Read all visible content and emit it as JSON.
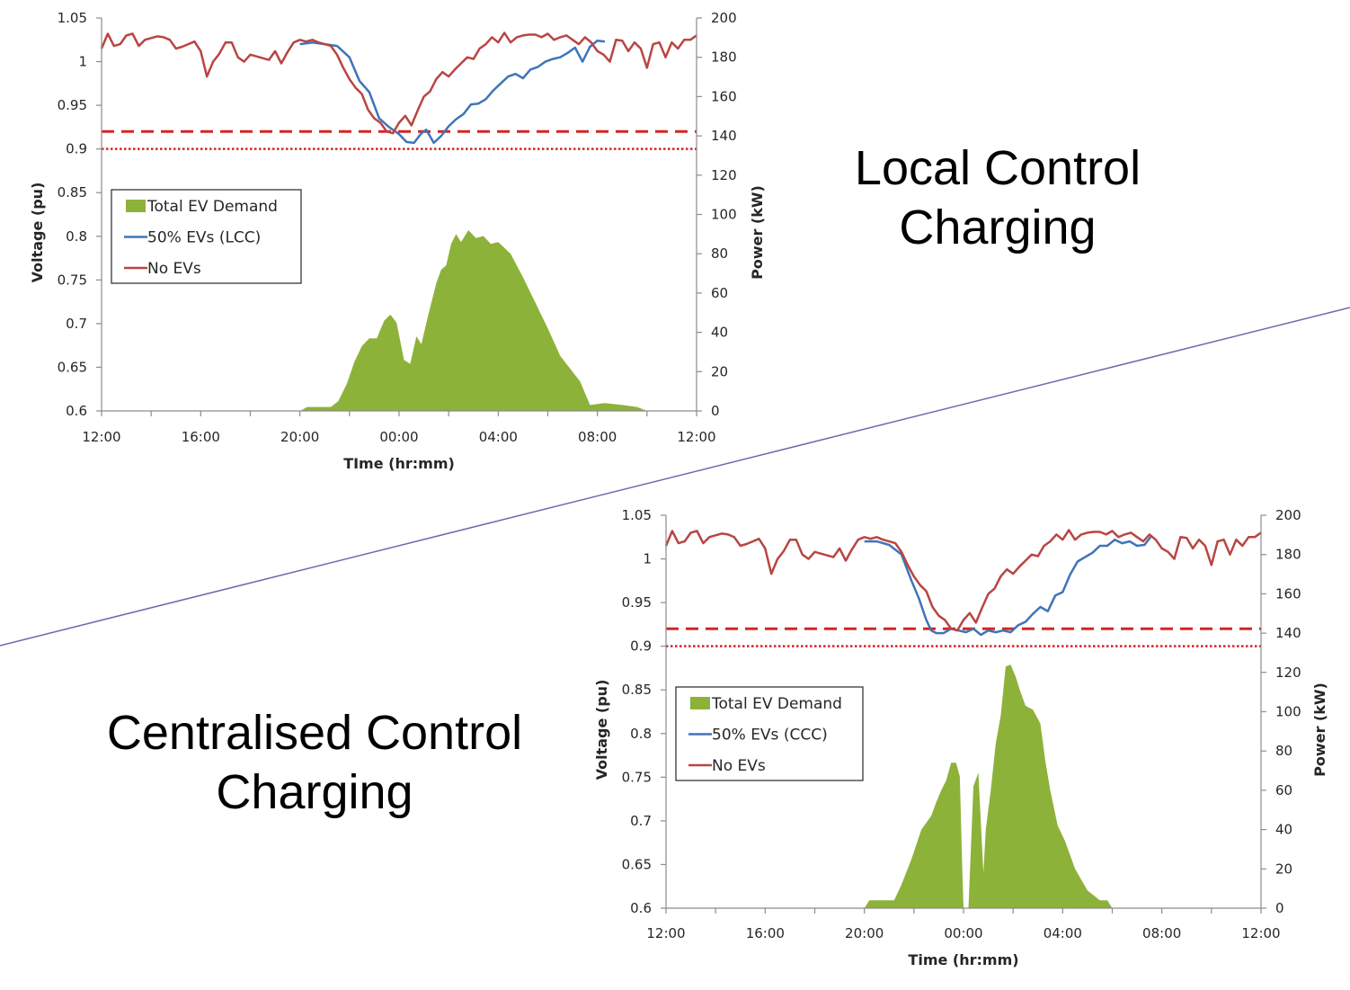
{
  "labels": {
    "top": [
      "Local Control",
      "Charging"
    ],
    "bottom": [
      "Centralised Control",
      "Charging"
    ]
  },
  "colors": {
    "demand": "#8db23a",
    "ev": "#3f74b9",
    "noev": "#b94542",
    "limit": "#d42525",
    "divider": "#6f6aa8"
  },
  "chart_data": [
    {
      "type": "area+line",
      "title": "Local Control Charging",
      "xlabel": "TIme (hr:mm)",
      "ylabel": "Voltage (pu)",
      "y2label": "Power (kW)",
      "x_ticks": [
        "12:00",
        "16:00",
        "20:00",
        "00:00",
        "04:00",
        "08:00",
        "12:00"
      ],
      "xlim_hours": [
        0,
        24
      ],
      "ylim": [
        0.6,
        1.05
      ],
      "y_ticks": [
        "0.6",
        "0.65",
        "0.7",
        "0.75",
        "0.8",
        "0.85",
        "0.9",
        "0.95",
        "1",
        "1.05"
      ],
      "y2lim": [
        0,
        200
      ],
      "y2_ticks": [
        "0",
        "20",
        "40",
        "60",
        "80",
        "100",
        "120",
        "140",
        "160",
        "180",
        "200"
      ],
      "limits": [
        {
          "value": 0.92,
          "style": "dashed"
        },
        {
          "value": 0.9,
          "style": "dotted"
        }
      ],
      "legend": [
        "Total EV Demand",
        "50% EVs (LCC)",
        "No EVs"
      ],
      "series": [
        {
          "name": "Total EV Demand",
          "axis": "y2",
          "kind": "area",
          "x": [
            0,
            8.0,
            8.3,
            9.25,
            9.55,
            9.9,
            10.2,
            10.5,
            10.8,
            11.1,
            11.4,
            11.65,
            11.9,
            12.2,
            12.45,
            12.7,
            12.9,
            13.2,
            13.5,
            13.7,
            13.9,
            14.1,
            14.3,
            14.5,
            14.8,
            15.1,
            15.4,
            15.7,
            16.0,
            16.5,
            17.0,
            17.5,
            18.0,
            18.5,
            19.3,
            19.7,
            20.3,
            21.0,
            21.6,
            22.0
          ],
          "y": [
            0,
            0,
            2,
            2,
            5,
            14,
            25,
            33,
            37,
            37,
            46,
            49,
            45,
            26,
            24,
            38,
            34,
            50,
            65,
            72,
            74,
            85,
            90,
            86,
            92,
            88,
            89,
            85,
            86,
            80,
            68,
            55,
            42,
            28,
            15,
            3,
            4,
            3,
            2,
            0
          ]
        },
        {
          "name": "50% EVs (LCC)",
          "axis": "y",
          "kind": "line",
          "x": [
            8.0,
            8.5,
            9.0,
            9.5,
            10.0,
            10.4,
            10.8,
            11.2,
            11.6,
            12.0,
            12.3,
            12.6,
            12.9,
            13.1,
            13.4,
            13.7,
            14.0,
            14.3,
            14.6,
            14.9,
            15.2,
            15.5,
            15.8,
            16.1,
            16.4,
            16.7,
            17.0,
            17.3,
            17.6,
            17.9,
            18.2,
            18.5,
            18.8,
            19.1,
            19.4,
            19.7,
            20.0,
            20.3
          ],
          "y": [
            1.02,
            1.022,
            1.02,
            1.018,
            1.005,
            0.978,
            0.965,
            0.935,
            0.925,
            0.917,
            0.908,
            0.907,
            0.918,
            0.922,
            0.907,
            0.915,
            0.926,
            0.934,
            0.94,
            0.951,
            0.952,
            0.957,
            0.967,
            0.975,
            0.983,
            0.986,
            0.981,
            0.991,
            0.994,
            1.0,
            1.003,
            1.005,
            1.01,
            1.016,
            1.0,
            1.017,
            1.024,
            1.023
          ]
        },
        {
          "name": "No EVs",
          "axis": "y",
          "kind": "line",
          "x": [
            0,
            0.25,
            0.5,
            0.75,
            1.0,
            1.25,
            1.5,
            1.75,
            2.0,
            2.25,
            2.5,
            2.75,
            3.0,
            3.25,
            3.5,
            3.75,
            4.0,
            4.25,
            4.5,
            4.75,
            5.0,
            5.25,
            5.5,
            5.75,
            6.0,
            6.25,
            6.5,
            6.75,
            7.0,
            7.25,
            7.5,
            7.75,
            8.0,
            8.25,
            8.5,
            8.75,
            9.0,
            9.25,
            9.5,
            9.75,
            10.0,
            10.25,
            10.5,
            10.75,
            11.0,
            11.25,
            11.5,
            11.75,
            12.0,
            12.25,
            12.5,
            12.75,
            13.0,
            13.25,
            13.5,
            13.75,
            14.0,
            14.25,
            14.5,
            14.75,
            15.0,
            15.25,
            15.5,
            15.75,
            16.0,
            16.25,
            16.5,
            16.75,
            17.0,
            17.25,
            17.5,
            17.75,
            18.0,
            18.25,
            18.5,
            18.75,
            19.0,
            19.25,
            19.5,
            19.75,
            20.0,
            20.25,
            20.5,
            20.75,
            21.0,
            21.25,
            21.5,
            21.75,
            22.0,
            22.25,
            22.5,
            22.75,
            23.0,
            23.25,
            23.5,
            23.75,
            24.0
          ],
          "y": [
            1.015,
            1.032,
            1.018,
            1.02,
            1.03,
            1.032,
            1.018,
            1.025,
            1.027,
            1.029,
            1.028,
            1.025,
            1.015,
            1.017,
            1.02,
            1.023,
            1.012,
            0.983,
            1.0,
            1.009,
            1.022,
            1.022,
            1.005,
            1.0,
            1.008,
            1.006,
            1.004,
            1.002,
            1.012,
            0.998,
            1.011,
            1.022,
            1.025,
            1.023,
            1.025,
            1.022,
            1.02,
            1.018,
            1.008,
            0.993,
            0.98,
            0.97,
            0.963,
            0.945,
            0.935,
            0.93,
            0.92,
            0.918,
            0.93,
            0.938,
            0.927,
            0.944,
            0.96,
            0.966,
            0.98,
            0.988,
            0.983,
            0.991,
            0.998,
            1.005,
            1.003,
            1.015,
            1.02,
            1.028,
            1.022,
            1.033,
            1.022,
            1.028,
            1.03,
            1.031,
            1.031,
            1.028,
            1.032,
            1.025,
            1.028,
            1.03,
            1.025,
            1.02,
            1.028,
            1.022,
            1.012,
            1.008,
            1.0,
            1.025,
            1.024,
            1.012,
            1.022,
            1.015,
            0.993,
            1.02,
            1.022,
            1.005,
            1.022,
            1.015,
            1.025,
            1.025,
            1.03
          ]
        }
      ]
    },
    {
      "type": "area+line",
      "title": "Centralised Control Charging",
      "xlabel": "Time (hr:mm)",
      "ylabel": "Voltage (pu)",
      "y2label": "Power (kW)",
      "x_ticks": [
        "12:00",
        "16:00",
        "20:00",
        "00:00",
        "04:00",
        "08:00",
        "12:00"
      ],
      "xlim_hours": [
        0,
        24
      ],
      "ylim": [
        0.6,
        1.05
      ],
      "y_ticks": [
        "0.6",
        "0.65",
        "0.7",
        "0.75",
        "0.8",
        "0.85",
        "0.9",
        "0.95",
        "1",
        "1.05"
      ],
      "y2lim": [
        0,
        200
      ],
      "y2_ticks": [
        "0",
        "20",
        "40",
        "60",
        "80",
        "100",
        "120",
        "140",
        "160",
        "180",
        "200"
      ],
      "limits": [
        {
          "value": 0.92,
          "style": "dashed"
        },
        {
          "value": 0.9,
          "style": "dotted"
        }
      ],
      "legend": [
        "Total EV Demand",
        "50% EVs (CCC)",
        "No EVs"
      ],
      "series": [
        {
          "name": "Total EV Demand",
          "axis": "y2",
          "kind": "area",
          "x": [
            0,
            8.0,
            8.2,
            9.2,
            9.5,
            9.9,
            10.3,
            10.7,
            10.9,
            11.1,
            11.3,
            11.5,
            11.7,
            11.85,
            11.95,
            12.0,
            12.05,
            12.2,
            12.4,
            12.6,
            12.8,
            12.9,
            13.1,
            13.3,
            13.5,
            13.7,
            13.9,
            14.1,
            14.3,
            14.5,
            14.8,
            15.1,
            15.3,
            15.5,
            15.8,
            16.1,
            16.5,
            17.0,
            17.5,
            17.8,
            18.0,
            18.3,
            18.6,
            19.0,
            19.4,
            24.0
          ],
          "y": [
            0,
            0,
            4,
            4,
            12,
            25,
            40,
            47,
            54,
            60,
            65,
            74,
            74,
            67,
            20,
            0,
            0,
            0,
            62,
            69,
            18,
            40,
            60,
            84,
            98,
            123,
            124,
            118,
            110,
            103,
            101,
            94,
            75,
            60,
            42,
            34,
            20,
            9,
            4,
            4,
            0,
            0,
            0,
            0,
            0,
            0
          ]
        },
        {
          "name": "50% EVs (CCC)",
          "axis": "y",
          "kind": "line",
          "x": [
            8.0,
            8.5,
            9.0,
            9.5,
            9.9,
            10.2,
            10.5,
            10.7,
            10.9,
            11.2,
            11.5,
            11.8,
            12.1,
            12.4,
            12.7,
            13.0,
            13.3,
            13.6,
            13.9,
            14.2,
            14.5,
            14.8,
            15.1,
            15.4,
            15.7,
            16.0,
            16.3,
            16.6,
            16.9,
            17.2,
            17.5,
            17.8,
            18.1,
            18.4,
            18.7,
            19.0,
            19.3,
            19.6
          ],
          "y": [
            1.02,
            1.02,
            1.016,
            1.005,
            0.975,
            0.955,
            0.93,
            0.918,
            0.915,
            0.915,
            0.92,
            0.918,
            0.916,
            0.92,
            0.913,
            0.918,
            0.916,
            0.918,
            0.916,
            0.924,
            0.928,
            0.937,
            0.945,
            0.94,
            0.958,
            0.962,
            0.982,
            0.997,
            1.002,
            1.007,
            1.015,
            1.015,
            1.022,
            1.018,
            1.02,
            1.015,
            1.016,
            1.027
          ]
        },
        {
          "name": "No EVs",
          "axis": "y",
          "kind": "line",
          "x": [
            0,
            0.25,
            0.5,
            0.75,
            1.0,
            1.25,
            1.5,
            1.75,
            2.0,
            2.25,
            2.5,
            2.75,
            3.0,
            3.25,
            3.5,
            3.75,
            4.0,
            4.25,
            4.5,
            4.75,
            5.0,
            5.25,
            5.5,
            5.75,
            6.0,
            6.25,
            6.5,
            6.75,
            7.0,
            7.25,
            7.5,
            7.75,
            8.0,
            8.25,
            8.5,
            8.75,
            9.0,
            9.25,
            9.5,
            9.75,
            10.0,
            10.25,
            10.5,
            10.75,
            11.0,
            11.25,
            11.5,
            11.75,
            12.0,
            12.25,
            12.5,
            12.75,
            13.0,
            13.25,
            13.5,
            13.75,
            14.0,
            14.25,
            14.5,
            14.75,
            15.0,
            15.25,
            15.5,
            15.75,
            16.0,
            16.25,
            16.5,
            16.75,
            17.0,
            17.25,
            17.5,
            17.75,
            18.0,
            18.25,
            18.5,
            18.75,
            19.0,
            19.25,
            19.5,
            19.75,
            20.0,
            20.25,
            20.5,
            20.75,
            21.0,
            21.25,
            21.5,
            21.75,
            22.0,
            22.25,
            22.5,
            22.75,
            23.0,
            23.25,
            23.5,
            23.75,
            24.0
          ],
          "y": [
            1.015,
            1.032,
            1.018,
            1.02,
            1.03,
            1.032,
            1.018,
            1.025,
            1.027,
            1.029,
            1.028,
            1.025,
            1.015,
            1.017,
            1.02,
            1.023,
            1.012,
            0.983,
            1.0,
            1.009,
            1.022,
            1.022,
            1.005,
            1.0,
            1.008,
            1.006,
            1.004,
            1.002,
            1.012,
            0.998,
            1.011,
            1.022,
            1.025,
            1.023,
            1.025,
            1.022,
            1.02,
            1.018,
            1.008,
            0.993,
            0.98,
            0.97,
            0.963,
            0.945,
            0.935,
            0.93,
            0.92,
            0.918,
            0.93,
            0.938,
            0.927,
            0.944,
            0.96,
            0.966,
            0.98,
            0.988,
            0.983,
            0.991,
            0.998,
            1.005,
            1.003,
            1.015,
            1.02,
            1.028,
            1.022,
            1.033,
            1.022,
            1.028,
            1.03,
            1.031,
            1.031,
            1.028,
            1.032,
            1.025,
            1.028,
            1.03,
            1.025,
            1.02,
            1.028,
            1.022,
            1.012,
            1.008,
            1.0,
            1.025,
            1.024,
            1.012,
            1.022,
            1.015,
            0.993,
            1.02,
            1.022,
            1.005,
            1.022,
            1.015,
            1.025,
            1.025,
            1.03
          ]
        }
      ]
    }
  ]
}
